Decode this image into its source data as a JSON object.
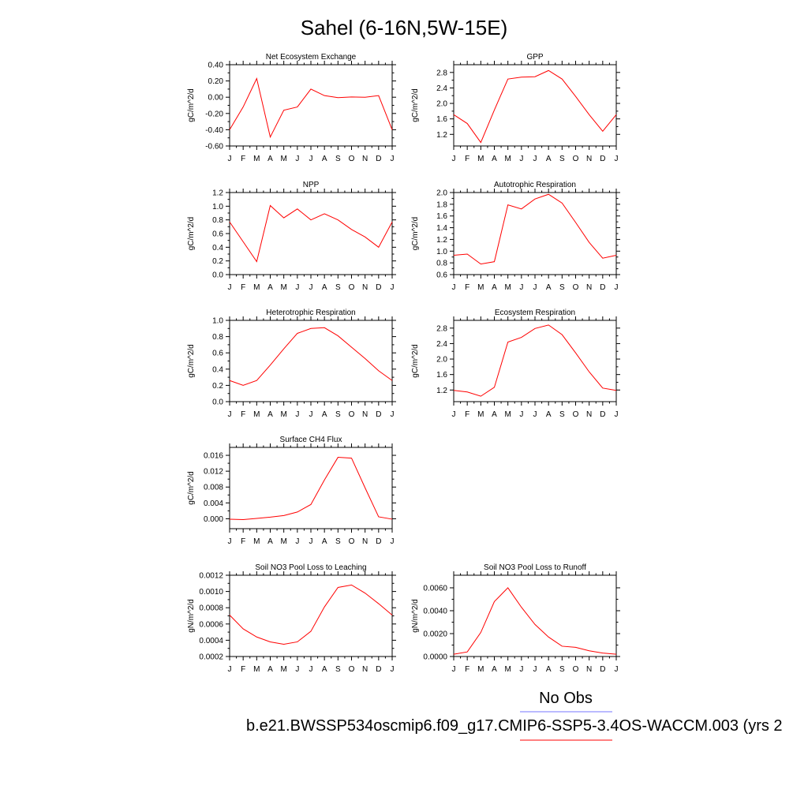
{
  "page": {
    "title": "Sahel (6-16N,5W-15E)",
    "legend": {
      "obs_label": "No Obs",
      "obs_color": "#7777ff",
      "model_label": "b.e21.BWSSP534oscmip6.f09_g17.CMIP6-SSP5-3.4OS-WACCM.003 (yrs 2",
      "model_color": "#ff0000"
    }
  },
  "chart_data": [
    {
      "type": "line",
      "title": "Net Ecosystem Exchange",
      "ylabel": "gC/m^2/d",
      "ylim": [
        -0.6,
        0.4
      ],
      "yticks": [
        -0.6,
        -0.4,
        -0.2,
        0.0,
        0.2,
        0.4
      ],
      "ytick_labels": [
        "-0.60",
        "-0.40",
        "-0.20",
        "0.00",
        "0.20",
        "0.40"
      ],
      "xtick_labels": [
        "J",
        "F",
        "M",
        "A",
        "M",
        "J",
        "J",
        "A",
        "S",
        "O",
        "N",
        "D",
        "J"
      ],
      "series": [
        {
          "color": "#ff0000",
          "values": [
            -0.4,
            -0.12,
            0.23,
            -0.49,
            -0.16,
            -0.12,
            0.1,
            0.02,
            -0.005,
            0.003,
            0.0,
            0.02,
            -0.4
          ]
        }
      ]
    },
    {
      "type": "line",
      "title": "GPP",
      "ylabel": "gC/m^2/d",
      "ylim": [
        0.9,
        3.0
      ],
      "yticks": [
        1.2,
        1.6,
        2.0,
        2.4,
        2.8
      ],
      "ytick_labels": [
        "1.2",
        "1.6",
        "2.0",
        "2.4",
        "2.8"
      ],
      "xtick_labels": [
        "J",
        "F",
        "M",
        "A",
        "M",
        "J",
        "J",
        "A",
        "S",
        "O",
        "N",
        "D",
        "J"
      ],
      "series": [
        {
          "color": "#ff0000",
          "values": [
            1.71,
            1.48,
            0.99,
            1.83,
            2.63,
            2.68,
            2.69,
            2.85,
            2.63,
            2.18,
            1.71,
            1.28,
            1.71
          ]
        }
      ]
    },
    {
      "type": "line",
      "title": "NPP",
      "ylabel": "gC/m^2/d",
      "ylim": [
        0.0,
        1.2
      ],
      "yticks": [
        0.0,
        0.2,
        0.4,
        0.6,
        0.8,
        1.0,
        1.2
      ],
      "ytick_labels": [
        "0.0",
        "0.2",
        "0.4",
        "0.6",
        "0.8",
        "1.0",
        "1.2"
      ],
      "xtick_labels": [
        "J",
        "F",
        "M",
        "A",
        "M",
        "J",
        "J",
        "A",
        "S",
        "O",
        "N",
        "D",
        "J"
      ],
      "series": [
        {
          "color": "#ff0000",
          "values": [
            0.77,
            0.48,
            0.19,
            1.01,
            0.83,
            0.96,
            0.8,
            0.89,
            0.8,
            0.66,
            0.55,
            0.4,
            0.77
          ]
        }
      ]
    },
    {
      "type": "line",
      "title": "Autotrophic Respiration",
      "ylabel": "gC/m^2/d",
      "ylim": [
        0.6,
        2.0
      ],
      "yticks": [
        0.6,
        0.8,
        1.0,
        1.2,
        1.4,
        1.6,
        1.8,
        2.0
      ],
      "ytick_labels": [
        "0.6",
        "0.8",
        "1.0",
        "1.2",
        "1.4",
        "1.6",
        "1.8",
        "2.0"
      ],
      "xtick_labels": [
        "J",
        "F",
        "M",
        "A",
        "M",
        "J",
        "J",
        "A",
        "S",
        "O",
        "N",
        "D",
        "J"
      ],
      "series": [
        {
          "color": "#ff0000",
          "values": [
            0.93,
            0.95,
            0.78,
            0.82,
            1.79,
            1.72,
            1.89,
            1.97,
            1.82,
            1.49,
            1.15,
            0.88,
            0.93
          ]
        }
      ]
    },
    {
      "type": "line",
      "title": "Heterotrophic Respiration",
      "ylabel": "gC/m^2/d",
      "ylim": [
        0.0,
        1.0
      ],
      "yticks": [
        0.0,
        0.2,
        0.4,
        0.6,
        0.8,
        1.0
      ],
      "ytick_labels": [
        "0.0",
        "0.2",
        "0.4",
        "0.6",
        "0.8",
        "1.0"
      ],
      "xtick_labels": [
        "J",
        "F",
        "M",
        "A",
        "M",
        "J",
        "J",
        "A",
        "S",
        "O",
        "N",
        "D",
        "J"
      ],
      "series": [
        {
          "color": "#ff0000",
          "values": [
            0.26,
            0.2,
            0.26,
            0.45,
            0.65,
            0.84,
            0.9,
            0.91,
            0.81,
            0.67,
            0.53,
            0.38,
            0.26
          ]
        }
      ]
    },
    {
      "type": "line",
      "title": "Ecosystem Respiration",
      "ylabel": "gC/m^2/d",
      "ylim": [
        0.9,
        3.0
      ],
      "yticks": [
        1.2,
        1.6,
        2.0,
        2.4,
        2.8
      ],
      "ytick_labels": [
        "1.2",
        "1.6",
        "2.0",
        "2.4",
        "2.8"
      ],
      "xtick_labels": [
        "J",
        "F",
        "M",
        "A",
        "M",
        "J",
        "J",
        "A",
        "S",
        "O",
        "N",
        "D",
        "J"
      ],
      "series": [
        {
          "color": "#ff0000",
          "values": [
            1.19,
            1.15,
            1.04,
            1.27,
            2.44,
            2.56,
            2.79,
            2.88,
            2.63,
            2.16,
            1.67,
            1.25,
            1.19
          ]
        }
      ]
    },
    {
      "type": "line",
      "title": "Surface CH4 Flux",
      "ylabel": "gC/m^2/d",
      "ylim": [
        -0.0025,
        0.018
      ],
      "yticks": [
        0.0,
        0.004,
        0.008,
        0.012,
        0.016
      ],
      "ytick_labels": [
        "0.000",
        "0.004",
        "0.008",
        "0.012",
        "0.016"
      ],
      "xtick_labels": [
        "J",
        "F",
        "M",
        "A",
        "M",
        "J",
        "J",
        "A",
        "S",
        "O",
        "N",
        "D",
        "J"
      ],
      "series": [
        {
          "color": "#ff0000",
          "values": [
            -0.0001,
            -0.0002,
            0.0001,
            0.0004,
            0.0008,
            0.0017,
            0.0036,
            0.0098,
            0.0155,
            0.0153,
            0.0078,
            0.0005,
            -0.0001
          ]
        }
      ]
    },
    {
      "type": "line",
      "title": "Soil NO3 Pool Loss to Leaching",
      "ylabel": "gN/m^2/d",
      "ylim": [
        0.0002,
        0.0012
      ],
      "yticks": [
        0.0002,
        0.0004,
        0.0006,
        0.0008,
        0.001,
        0.0012
      ],
      "ytick_labels": [
        "0.0002",
        "0.0004",
        "0.0006",
        "0.0008",
        "0.0010",
        "0.0012"
      ],
      "xtick_labels": [
        "J",
        "F",
        "M",
        "A",
        "M",
        "J",
        "J",
        "A",
        "S",
        "O",
        "N",
        "D",
        "J"
      ],
      "series": [
        {
          "color": "#ff0000",
          "values": [
            0.00071,
            0.00054,
            0.00044,
            0.00038,
            0.00035,
            0.00038,
            0.00051,
            0.00081,
            0.00105,
            0.00108,
            0.00098,
            0.00085,
            0.00071
          ]
        }
      ]
    },
    {
      "type": "line",
      "title": "Soil NO3 Pool Loss to Runoff",
      "ylabel": "gN/m^2/d",
      "ylim": [
        0.0,
        0.0071
      ],
      "yticks": [
        0.0,
        0.002,
        0.004,
        0.006
      ],
      "ytick_labels": [
        "0.0000",
        "0.0020",
        "0.0040",
        "0.0060"
      ],
      "xtick_labels": [
        "J",
        "F",
        "M",
        "A",
        "M",
        "J",
        "J",
        "A",
        "S",
        "O",
        "N",
        "D",
        "J"
      ],
      "series": [
        {
          "color": "#ff0000",
          "values": [
            0.0002,
            0.0004,
            0.0021,
            0.0048,
            0.006,
            0.0043,
            0.0028,
            0.0017,
            0.0009,
            0.0008,
            0.0005,
            0.0003,
            0.0002
          ]
        }
      ]
    }
  ]
}
